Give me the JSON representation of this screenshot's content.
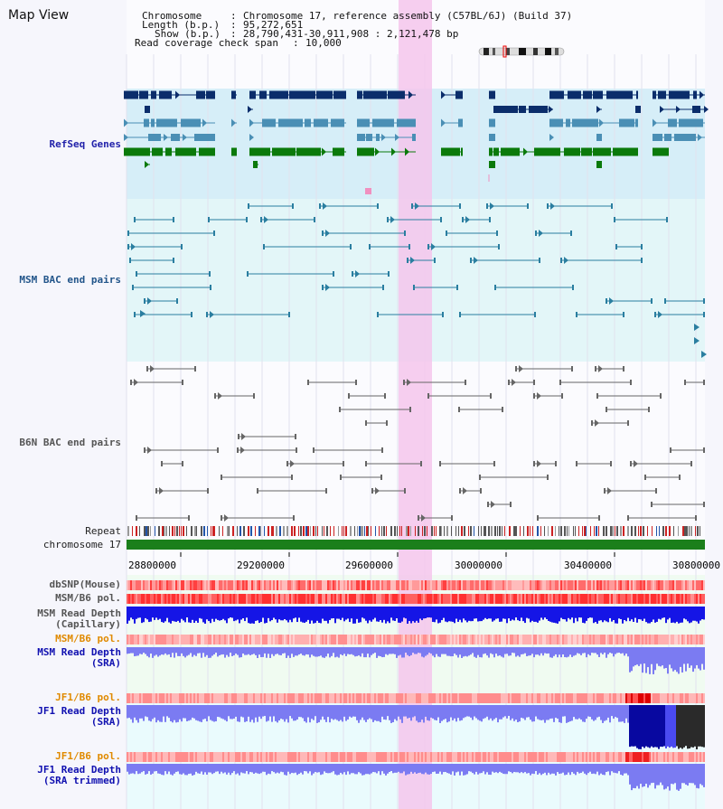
{
  "window": {
    "title": "Map View"
  },
  "info": {
    "chromosome_key": "Chromosome",
    "chromosome_val": "Chromosome 17, reference assembly (C57BL/6J) (Build 37)",
    "length_key": "Length (b.p.)",
    "length_val": "95,272,651",
    "show_key": "Show (b.p.)",
    "show_val": "28,790,431-30,911,908 : 2,121,478 bp",
    "coverage_key": "Read coverage check span",
    "coverage_val": "10,000"
  },
  "tracks": {
    "refseq": "RefSeq Genes",
    "msm_bac": "MSM BAC end pairs",
    "b6n_bac": "B6N BAC end pairs",
    "repeat": "Repeat",
    "chromosome": "chromosome 17",
    "dbsnp": "dbSNP(Mouse)",
    "msm_b6_pol_1": "MSM/B6 pol.",
    "msm_depth_cap_1": "MSM Read Depth",
    "msm_depth_cap_2": "(Capillary)",
    "msm_b6_pol_2": "MSM/B6 pol.",
    "msm_depth_sra_1": "MSM Read Depth",
    "msm_depth_sra_2": "(SRA)",
    "jf1_pol_1": "JF1/B6 pol.",
    "jf1_depth_1": "JF1 Read Depth",
    "jf1_depth_2": "(SRA)",
    "jf1_pol_2": "JF1/B6 pol.",
    "jf1_trim_1": "JF1 Read Depth",
    "jf1_trim_2": "(SRA trimmed)"
  },
  "axis": {
    "ticks": [
      "28800000",
      "29200000",
      "29600000",
      "30000000",
      "30400000",
      "30800000"
    ]
  },
  "colors": {
    "highlight": "#f4c6ec",
    "refseq_bg": "#d6eef8",
    "msm_bg": "#e3f6f8",
    "navy_gene": "#0b2d6b",
    "steel_gene": "#4a8fb5",
    "green_gene": "#0b7a0b",
    "chromosome_bar": "#1b7f1b",
    "depth_blue": "#1515e6",
    "depth_light": "#7b7bf2"
  }
}
